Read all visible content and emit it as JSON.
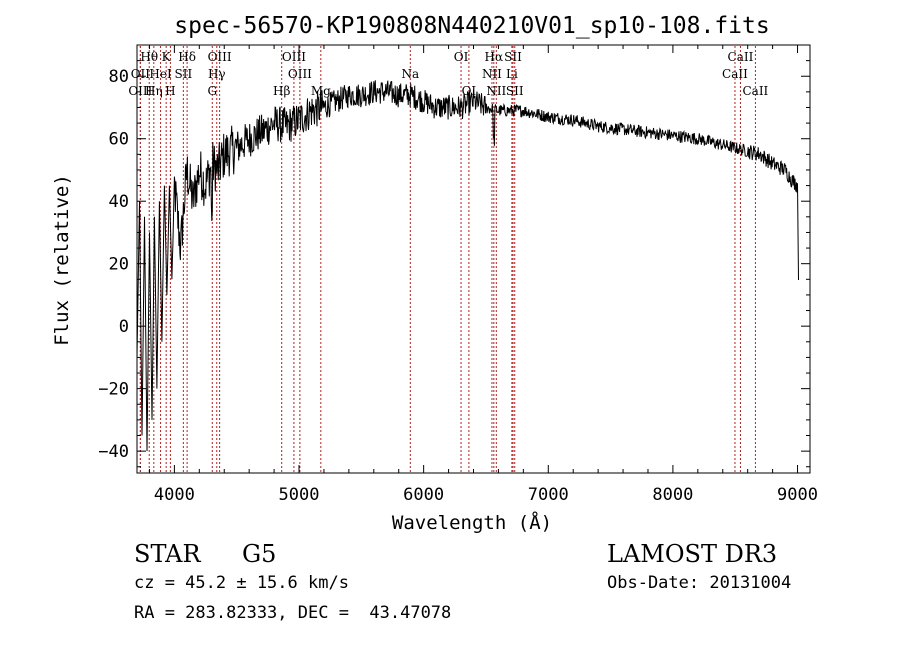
{
  "chart_data": {
    "type": "line",
    "title": "spec-56570-KP190808N440210V01_sp10-108.fits",
    "xlabel": "Wavelength (Å)",
    "ylabel": "Flux (relative)",
    "xlim": [
      3700,
      9100
    ],
    "ylim": [
      -47,
      90
    ],
    "xticks": [
      4000,
      5000,
      6000,
      7000,
      8000,
      9000
    ],
    "yticks": [
      -40,
      -20,
      0,
      20,
      40,
      60,
      80
    ],
    "spectrum": {
      "x": [
        3700,
        3720,
        3740,
        3760,
        3780,
        3800,
        3820,
        3840,
        3860,
        3880,
        3900,
        3920,
        3940,
        3960,
        3980,
        4000,
        4050,
        4100,
        4150,
        4200,
        4250,
        4300,
        4350,
        4400,
        4500,
        4600,
        4700,
        4800,
        4900,
        5000,
        5100,
        5200,
        5300,
        5400,
        5500,
        5600,
        5700,
        5800,
        5900,
        6000,
        6100,
        6200,
        6300,
        6400,
        6500,
        6600,
        6700,
        6800,
        6900,
        7000,
        7200,
        7400,
        7600,
        7800,
        8000,
        8200,
        8400,
        8500,
        8600,
        8700,
        8800,
        8900,
        8950,
        9000,
        9010
      ],
      "y": [
        -10,
        40,
        -35,
        35,
        -40,
        30,
        -30,
        35,
        -20,
        40,
        -5,
        45,
        10,
        45,
        15,
        45,
        25,
        50,
        40,
        50,
        45,
        52,
        50,
        55,
        57,
        60,
        62,
        65,
        64,
        66,
        69,
        70,
        72,
        74,
        74,
        75,
        75,
        74,
        74,
        72,
        70,
        70,
        70,
        72,
        70,
        69,
        69,
        69,
        68,
        67,
        66,
        64,
        63,
        62,
        61,
        60,
        58,
        57,
        56,
        55,
        52,
        50,
        47,
        45,
        10
      ]
    },
    "lines": [
      {
        "name": "Hθ",
        "wave": 3798,
        "row": 1
      },
      {
        "name": "K",
        "wave": 3934,
        "row": 1
      },
      {
        "name": "Hδ",
        "wave": 4102,
        "row": 1
      },
      {
        "name": "OIII",
        "wave": 4363,
        "row": 1
      },
      {
        "name": "OIII",
        "wave": 4959,
        "row": 1
      },
      {
        "name": "OI",
        "wave": 6300,
        "row": 1
      },
      {
        "name": "Hα",
        "wave": 6563,
        "row": 1
      },
      {
        "name": "SII",
        "wave": 6717,
        "row": 1
      },
      {
        "name": "CaII",
        "wave": 8542,
        "row": 1
      },
      {
        "name": "OII",
        "wave": 3727,
        "row": 2
      },
      {
        "name": "HeI",
        "wave": 3889,
        "row": 2
      },
      {
        "name": "SII",
        "wave": 4072,
        "row": 2
      },
      {
        "name": "Hγ",
        "wave": 4340,
        "row": 2
      },
      {
        "name": "OIII",
        "wave": 5007,
        "row": 2
      },
      {
        "name": "Na",
        "wave": 5893,
        "row": 2
      },
      {
        "name": "NII",
        "wave": 6548,
        "row": 2
      },
      {
        "name": "Li",
        "wave": 6708,
        "row": 2
      },
      {
        "name": "CaII",
        "wave": 8498,
        "row": 2
      },
      {
        "name": "OIII",
        "wave": 3727,
        "row": 3
      },
      {
        "name": "Hη",
        "wave": 3835,
        "row": 3
      },
      {
        "name": "H",
        "wave": 3968,
        "row": 3
      },
      {
        "name": "G",
        "wave": 4304,
        "row": 3
      },
      {
        "name": "Hβ",
        "wave": 4861,
        "row": 3
      },
      {
        "name": "Mg",
        "wave": 5175,
        "row": 3
      },
      {
        "name": "OI",
        "wave": 6363,
        "row": 3
      },
      {
        "name": "NII",
        "wave": 6583,
        "row": 3
      },
      {
        "name": "SII",
        "wave": 6731,
        "row": 3
      },
      {
        "name": "CaII",
        "wave": 8662,
        "row": 3
      }
    ]
  },
  "info": {
    "object_class": "STAR",
    "subclass": "G5",
    "survey": "LAMOST DR3",
    "cz": "cz = 45.2 ± 15.6 km/s",
    "obs_date": "Obs-Date: 20131004",
    "coords": "RA = 283.82333, DEC =  43.47078"
  }
}
